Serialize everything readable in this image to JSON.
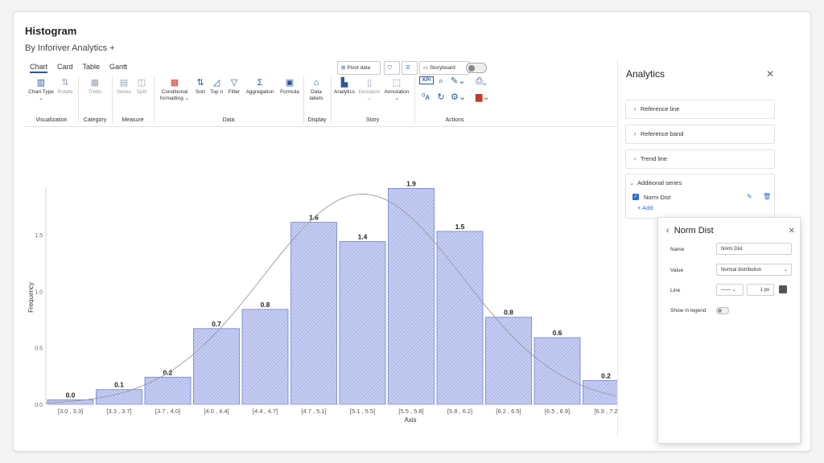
{
  "header": {
    "title": "Histogram",
    "subtitle": "By Inforiver Analytics +"
  },
  "ribbon": {
    "tabs": [
      "Chart",
      "Card",
      "Table",
      "Gantt"
    ],
    "active_tab": "Chart",
    "buttons": {
      "chart_type": "Chart Type",
      "rotate": "Rotate",
      "trellis": "Trellis",
      "series": "Series",
      "split": "Split",
      "conditional_formatting": "Conditional formatting",
      "sort": "Sort",
      "top_n": "Top n",
      "filter": "Filter",
      "aggregation": "Aggregation",
      "formula": "Formula",
      "data_labels": "Data labels",
      "analytics": "Analytics",
      "deviation": "Deviation",
      "annotation": "Annotation"
    },
    "groups": {
      "visualization": "Visualization",
      "category": "Category",
      "measure": "Measure",
      "data": "Data",
      "display": "Display",
      "story": "Story",
      "actions": "Actions"
    },
    "top_buttons": {
      "pivot_data": "Pivot data",
      "storyboard": "Storyboard",
      "kpi": "KPI"
    }
  },
  "analytics_panel": {
    "title": "Analytics",
    "sections": [
      "Reference line",
      "Reference band",
      "Trend line"
    ],
    "additional_series": {
      "label": "Additional series",
      "item": "Norm Dist",
      "checked": true,
      "add_label": "+ Add"
    }
  },
  "series_popup": {
    "title": "Norm Dist",
    "name_label": "Name",
    "name_value": "Norm Dist",
    "value_label": "Value",
    "value_value": "Normal distribution",
    "line_label": "Line",
    "line_width": "1 px",
    "legend_label": "Show in legend",
    "legend_on": false
  },
  "chart_data": {
    "type": "bar",
    "categories": [
      "[3.0 , 3.3]",
      "[3.3 , 3.7]",
      "[3.7 , 4.0]",
      "[4.0 , 4.4]",
      "[4.4 , 4.7]",
      "[4.7 , 5.1]",
      "[5.1 , 5.5]",
      "[5.5 , 5.8]",
      "[5.8 , 6.2]",
      "[6.2 , 6.5]",
      "[6.5 , 6.9]",
      "[6.9 , 7.2"
    ],
    "values": [
      0.04,
      0.13,
      0.24,
      0.67,
      0.84,
      1.61,
      1.44,
      1.91,
      1.53,
      0.77,
      0.59,
      0.21
    ],
    "data_labels": [
      "0.0",
      "0.1",
      "0.2",
      "0.7",
      "0.8",
      "1.6",
      "1.4",
      "1.9",
      "1.5",
      "0.8",
      "0.6",
      "0.2"
    ],
    "ylabel": "Frequency",
    "xlabel": "Axis",
    "yticks": [
      "0.0",
      "0.5",
      "1.0",
      "1.5"
    ],
    "ytick_values": [
      0,
      0.5,
      1.0,
      1.5
    ],
    "ylim": [
      0,
      1.92
    ],
    "overlay": {
      "type": "normal_curve",
      "peak": 1.86,
      "peak_category_index": 6.5,
      "color": "#9a9a9a"
    },
    "bar_color": "#8e9de0",
    "bar_border": "#6f7fd4"
  }
}
